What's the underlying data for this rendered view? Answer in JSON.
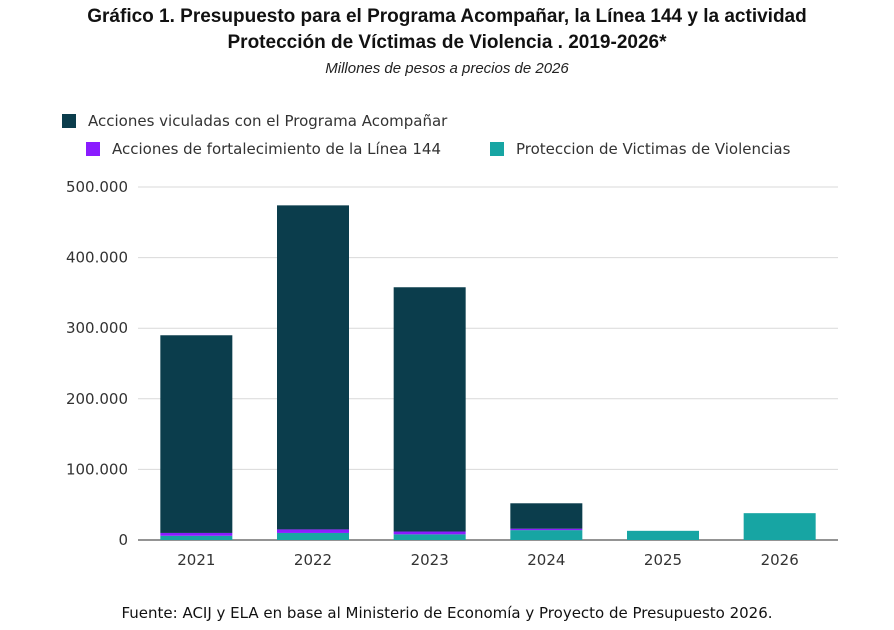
{
  "header": {
    "title_line1": "Gráfico 1. Presupuesto para el Programa Acompañar, la Línea 144 y la actividad",
    "title_line2": "Protección de Víctimas de Violencia . 2019-2026*",
    "subtitle": "Millones de pesos a precios de 2026"
  },
  "legend": {
    "items": [
      {
        "label": "Acciones viculadas con el Programa Acompañar",
        "color": "#0b3d4c"
      },
      {
        "label": "Acciones de fortalecimiento de la Línea 144",
        "color": "#8a1cff"
      },
      {
        "label": "Proteccion de Victimas de Violencias",
        "color": "#17a5a3"
      }
    ]
  },
  "source": "Fuente: ACIJ y ELA en base al Ministerio de Economía y Proyecto de Presupuesto 2026.",
  "chart_data": {
    "type": "bar",
    "stacked": true,
    "categories": [
      "2021",
      "2022",
      "2023",
      "2024",
      "2025",
      "2026"
    ],
    "series": [
      {
        "name": "Proteccion de Victimas de Violencias",
        "color": "#17a5a3",
        "values": [
          6000,
          10000,
          8000,
          14000,
          13000,
          38000
        ]
      },
      {
        "name": "Acciones de fortalecimiento de la Línea 144",
        "color": "#8a1cff",
        "values": [
          4000,
          5000,
          4000,
          2000,
          0,
          0
        ]
      },
      {
        "name": "Acciones viculadas con el Programa Acompañar",
        "color": "#0b3d4c",
        "values": [
          280000,
          459000,
          346000,
          36000,
          0,
          0
        ]
      }
    ],
    "ylim": [
      0,
      500000
    ],
    "yticks": [
      0,
      100000,
      200000,
      300000,
      400000,
      500000
    ],
    "ytick_labels": [
      "0",
      "100.000",
      "200.000",
      "300.000",
      "400.000",
      "500.000"
    ],
    "grid": true,
    "legend_position": "top-left"
  }
}
